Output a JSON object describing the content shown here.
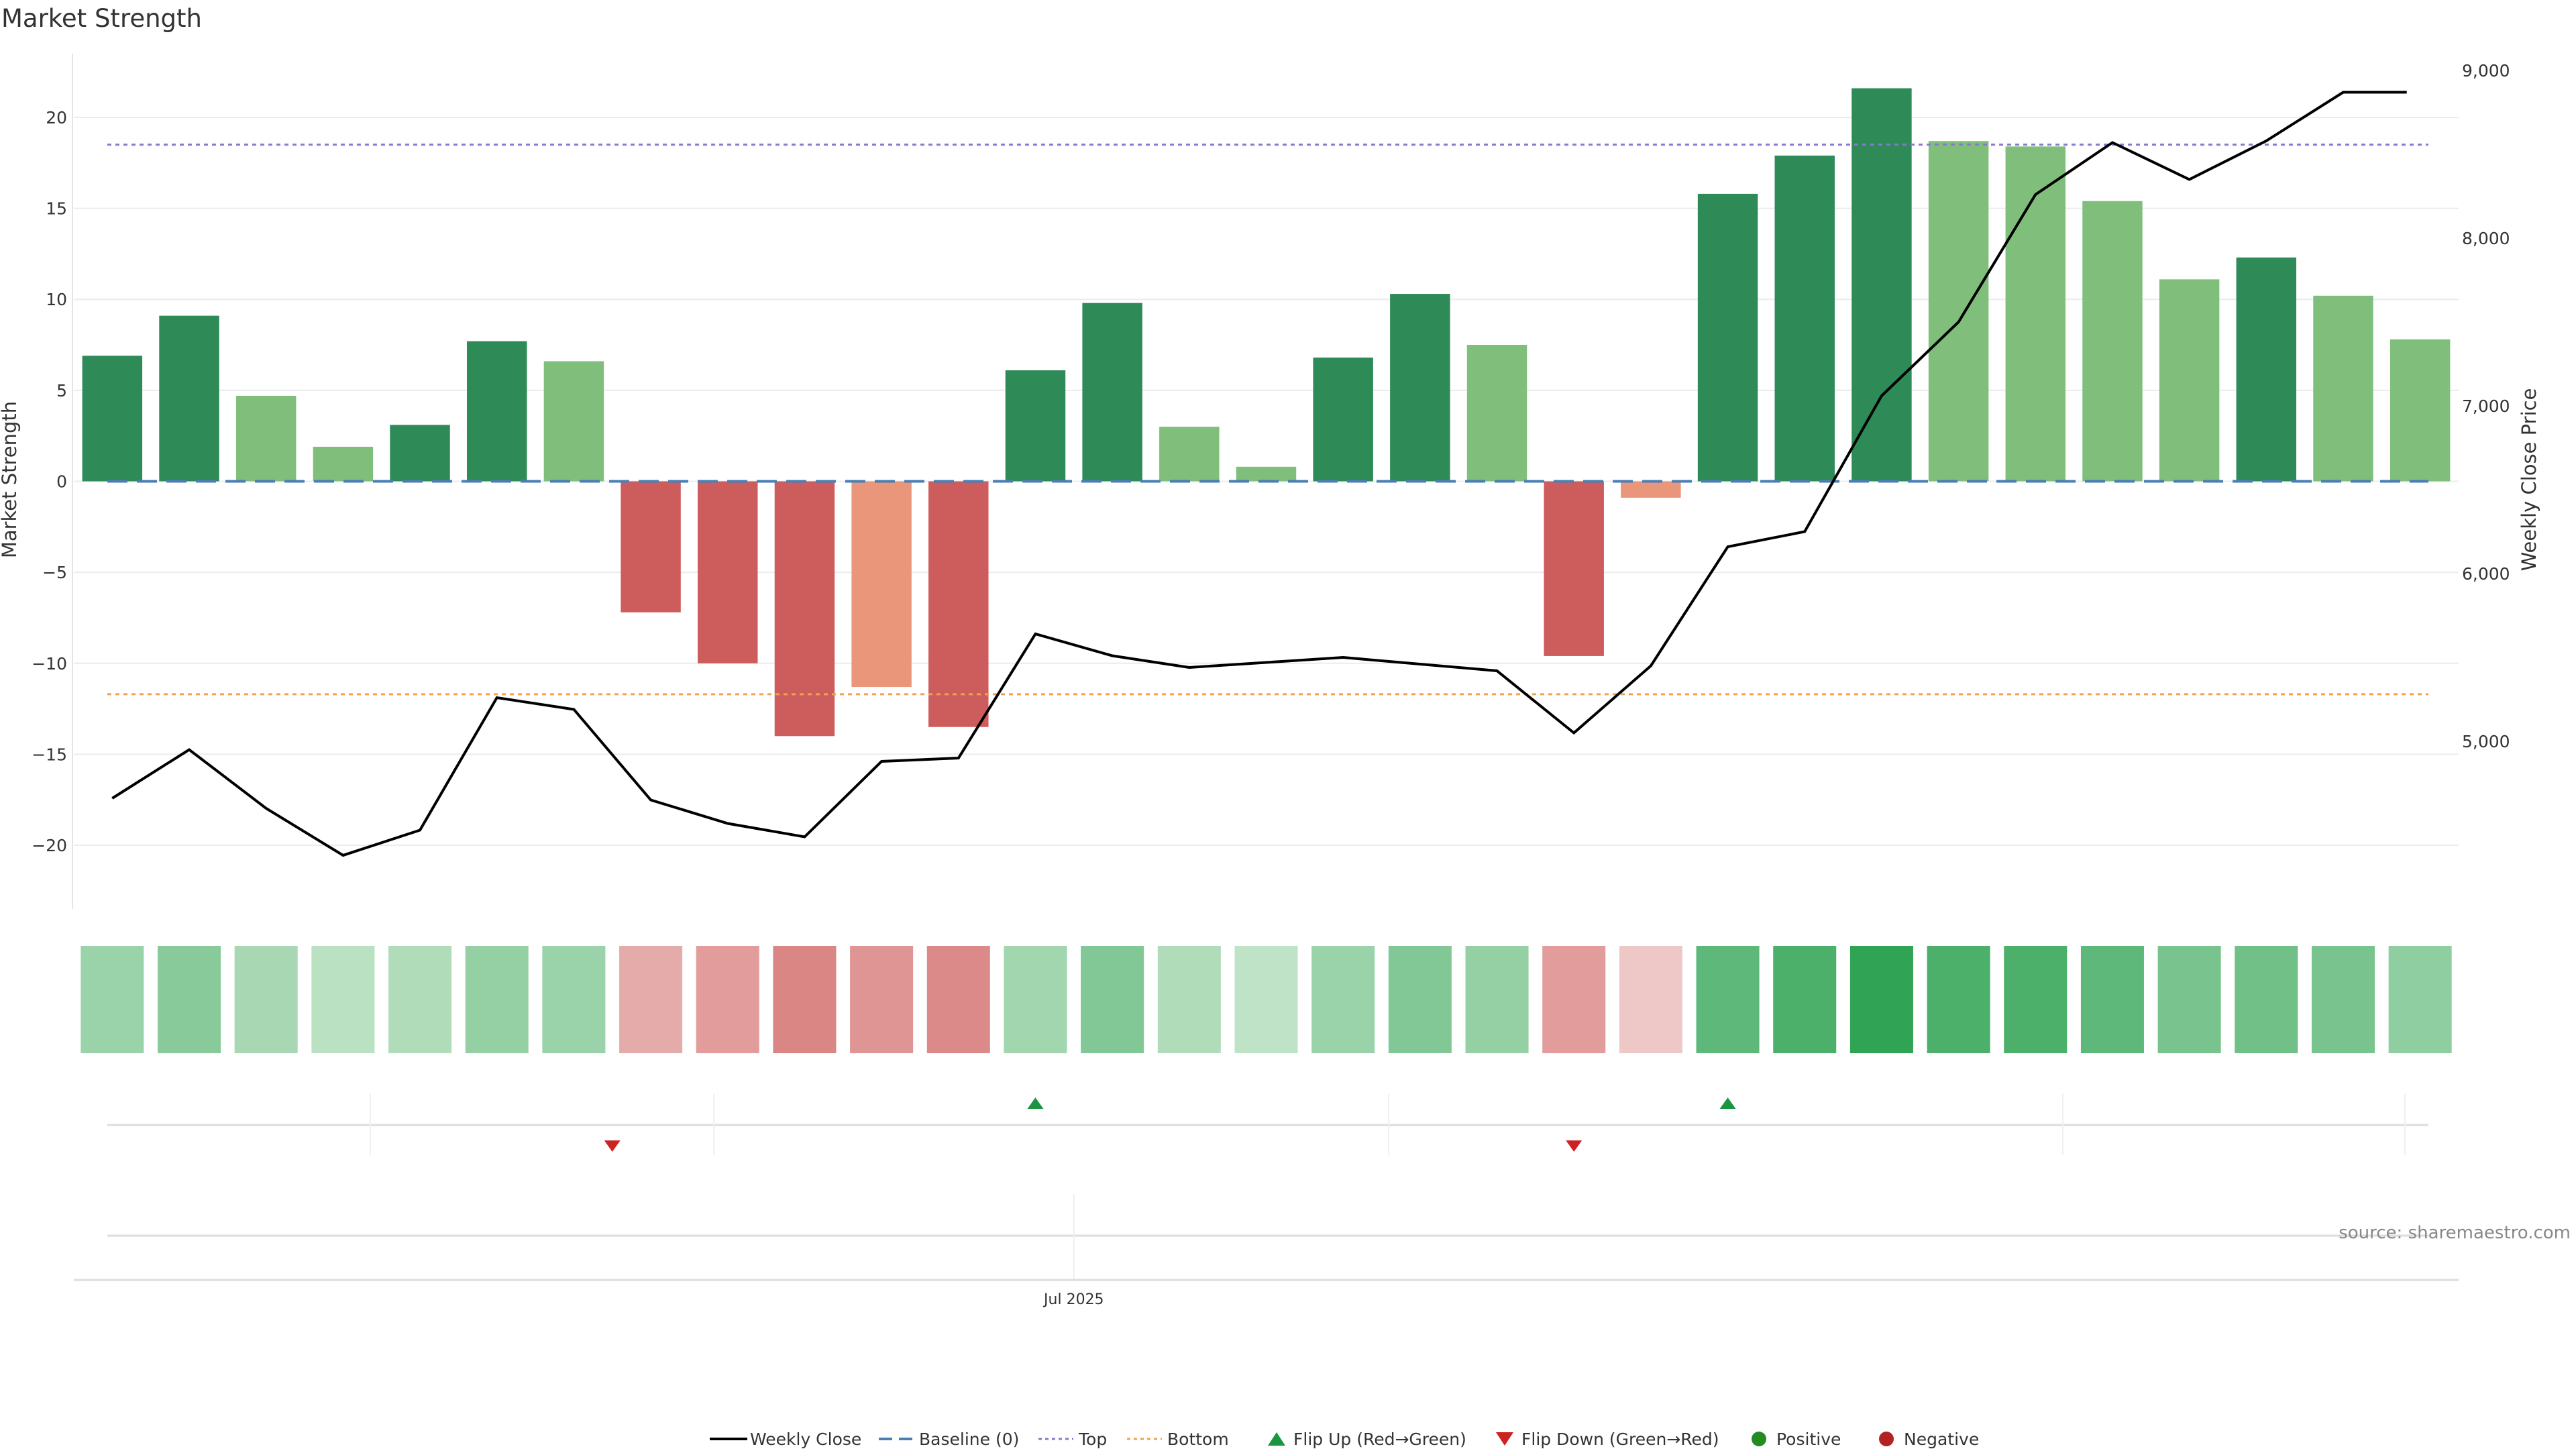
{
  "chart_data": {
    "type": "bar",
    "title": "Market Strength",
    "y_left_label": "Market Strength",
    "y_right_label": "Weekly Close Price",
    "y_left_range": [
      -23.5,
      23.5
    ],
    "y_right_range": [
      4000,
      9100
    ],
    "y_left_ticks": [
      {
        "value": -20,
        "label": "−20"
      },
      {
        "value": -15,
        "label": "−15"
      },
      {
        "value": -10,
        "label": "−10"
      },
      {
        "value": -5,
        "label": "−5"
      },
      {
        "value": 0,
        "label": "0"
      },
      {
        "value": 5,
        "label": "5"
      },
      {
        "value": 10,
        "label": "10"
      },
      {
        "value": 15,
        "label": "15"
      },
      {
        "value": 20,
        "label": "20"
      }
    ],
    "y_right_ticks": [
      {
        "value": 5000,
        "label": "5,000"
      },
      {
        "value": 6000,
        "label": "6,000"
      },
      {
        "value": 7000,
        "label": "7,000"
      },
      {
        "value": 8000,
        "label": "8,000"
      },
      {
        "value": 9000,
        "label": "9,000"
      }
    ],
    "x_tick_label": "Jul 2025",
    "x_tick_index": 12.5,
    "top_level": 18.5,
    "bottom_level": -11.7,
    "strength": [
      6.9,
      9.1,
      4.7,
      1.9,
      3.1,
      7.7,
      6.6,
      -7.2,
      -10.0,
      -14.0,
      -11.3,
      -13.5,
      6.1,
      9.8,
      3.0,
      0.8,
      6.8,
      10.3,
      7.5,
      -9.6,
      -0.9,
      15.8,
      17.9,
      21.6,
      18.7,
      18.4,
      15.4,
      11.1,
      12.3,
      10.2,
      7.8
    ],
    "bar_shade": [
      "dark",
      "dark",
      "light",
      "light",
      "dark",
      "dark",
      "light",
      "dark",
      "dark",
      "dark",
      "light",
      "dark",
      "dark",
      "dark",
      "light",
      "light",
      "dark",
      "dark",
      "light",
      "dark",
      "light",
      "dark",
      "dark",
      "dark",
      "light",
      "light",
      "light",
      "light",
      "dark",
      "light",
      "light"
    ],
    "weekly_close": [
      4660,
      4950,
      4600,
      4320,
      4470,
      5260,
      5190,
      4650,
      4510,
      4430,
      4880,
      4900,
      5640,
      5510,
      5440,
      5470,
      5500,
      5460,
      5420,
      5050,
      5450,
      6160,
      6250,
      7060,
      7500,
      8260,
      8570,
      8350,
      8580,
      8870,
      8870
    ],
    "heat_intensity": [
      0.42,
      0.52,
      0.35,
      0.25,
      0.3,
      0.45,
      0.42,
      0.4,
      0.5,
      0.65,
      0.55,
      0.62,
      0.38,
      0.55,
      0.3,
      0.22,
      0.42,
      0.55,
      0.45,
      0.5,
      0.2,
      0.75,
      0.85,
      1.0,
      0.85,
      0.85,
      0.75,
      0.6,
      0.65,
      0.6,
      0.48
    ],
    "flips": [
      {
        "index": 6.5,
        "direction": "down"
      },
      {
        "index": 12.0,
        "direction": "up"
      },
      {
        "index": 19.0,
        "direction": "down"
      },
      {
        "index": 21.0,
        "direction": "up"
      }
    ],
    "colors": {
      "bar_pos_dark": "#2e8b57",
      "bar_pos_light": "#7fbf7b",
      "bar_neg_dark": "#cd5c5c",
      "bar_neg_light": "#e9967a",
      "line": "#000000",
      "baseline": "#4a7fb5",
      "top": "#8878d0",
      "bottom": "#f0a050",
      "flip_up": "#1a9641",
      "flip_down": "#cc2222",
      "positive": "#228b22",
      "negative": "#b22222"
    },
    "legend": [
      {
        "label": "Weekly Close",
        "kind": "line"
      },
      {
        "label": "Baseline (0)",
        "kind": "dash"
      },
      {
        "label": "Top",
        "kind": "dot-top"
      },
      {
        "label": "Bottom",
        "kind": "dot-bottom"
      },
      {
        "label": "Flip Up (Red→Green)",
        "kind": "tri-up"
      },
      {
        "label": "Flip Down (Green→Red)",
        "kind": "tri-down"
      },
      {
        "label": "Positive",
        "kind": "circle-pos"
      },
      {
        "label": "Negative",
        "kind": "circle-neg"
      }
    ]
  },
  "source": "source: sharemaestro.com"
}
